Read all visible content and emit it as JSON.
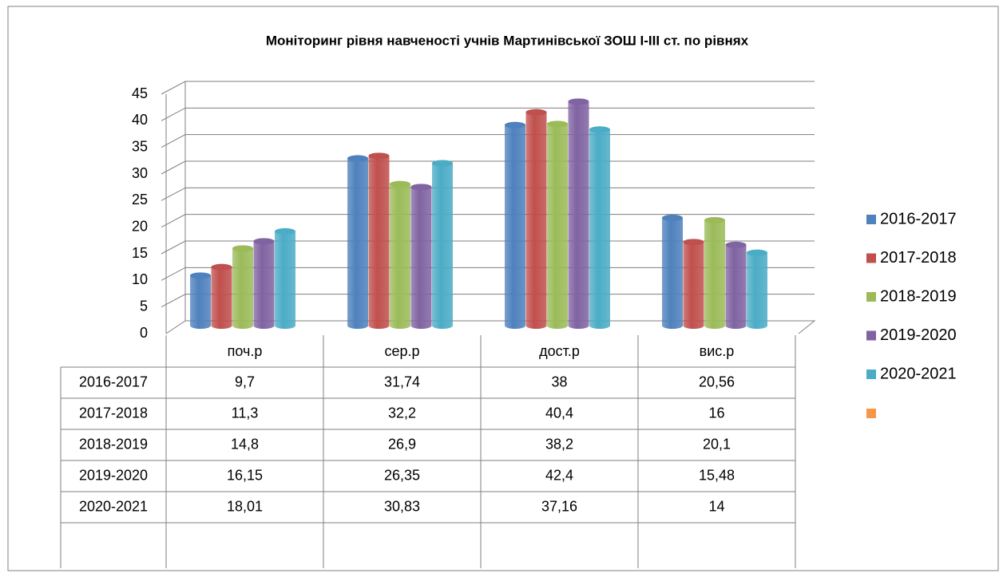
{
  "chart_data": {
    "type": "bar3d",
    "title": "Моніторинг рівня навченості учнів Мартинівської ЗОШ I-III ст. по рівнях",
    "categories": [
      "поч.р",
      "сер.р",
      "дост.р",
      "вис.р"
    ],
    "series": [
      {
        "name": "2016-2017",
        "color": "#4f81bd",
        "values": [
          9.7,
          31.74,
          38,
          20.56
        ],
        "value_labels": [
          "9,7",
          "31,74",
          "38",
          "20,56"
        ]
      },
      {
        "name": "2017-2018",
        "color": "#c0504d",
        "values": [
          11.3,
          32.2,
          40.4,
          16
        ],
        "value_labels": [
          "11,3",
          "32,2",
          "40,4",
          "16"
        ]
      },
      {
        "name": "2018-2019",
        "color": "#9bbb59",
        "values": [
          14.8,
          26.9,
          38.2,
          20.1
        ],
        "value_labels": [
          "14,8",
          "26,9",
          "38,2",
          "20,1"
        ]
      },
      {
        "name": "2019-2020",
        "color": "#8064a2",
        "values": [
          16.15,
          26.35,
          42.4,
          15.48
        ],
        "value_labels": [
          "16,15",
          "26,35",
          "42,4",
          "15,48"
        ]
      },
      {
        "name": "2020-2021",
        "color": "#4bacc6",
        "values": [
          18.01,
          30.83,
          37.16,
          14
        ],
        "value_labels": [
          "18,01",
          "30,83",
          "37,16",
          "14"
        ]
      }
    ],
    "ylim": [
      0,
      45
    ],
    "yticks": [
      0,
      5,
      10,
      15,
      20,
      25,
      30,
      35,
      40,
      45
    ],
    "grid": true,
    "legend": "right"
  }
}
